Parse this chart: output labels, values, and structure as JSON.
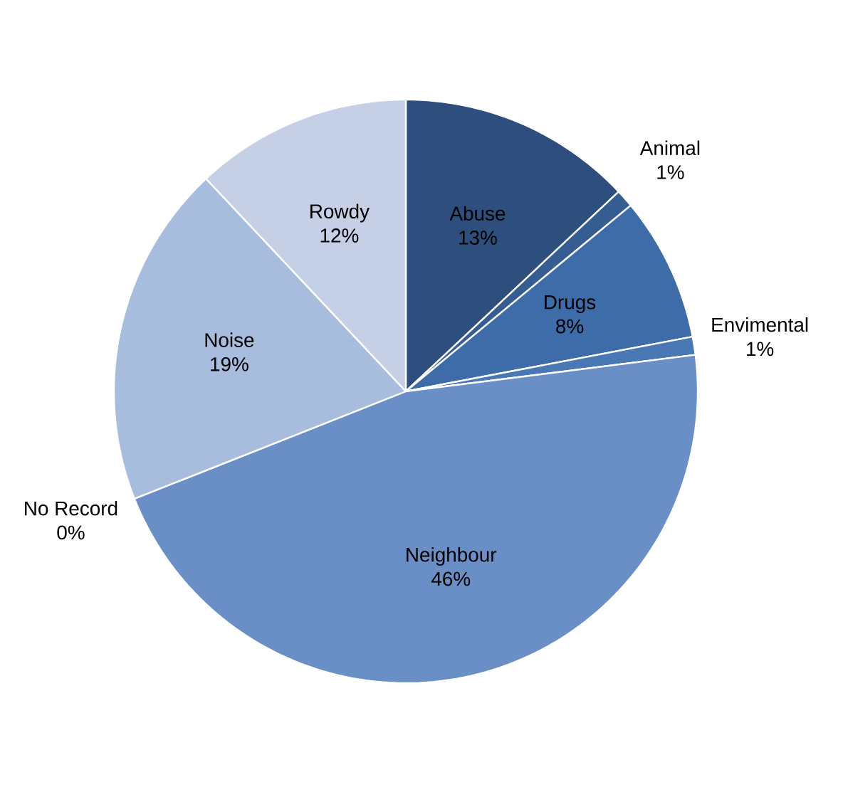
{
  "chart_data": {
    "type": "pie",
    "categories": [
      "Abuse",
      "Animal",
      "Drugs",
      "Envimental",
      "Neighbour",
      "No Record",
      "Noise",
      "Rowdy"
    ],
    "values": [
      13,
      1,
      8,
      1,
      46,
      0,
      19,
      12
    ],
    "value_labels": [
      "13%",
      "1%",
      "8%",
      "1%",
      "46%",
      "0%",
      "19%",
      "12%"
    ],
    "colors": [
      "#2e4f7e",
      "#355d92",
      "#3e6ca8",
      "#4a78b5",
      "#6a8fc6",
      "#7f9fcf",
      "#a8bcdd",
      "#c5d0e6"
    ]
  }
}
